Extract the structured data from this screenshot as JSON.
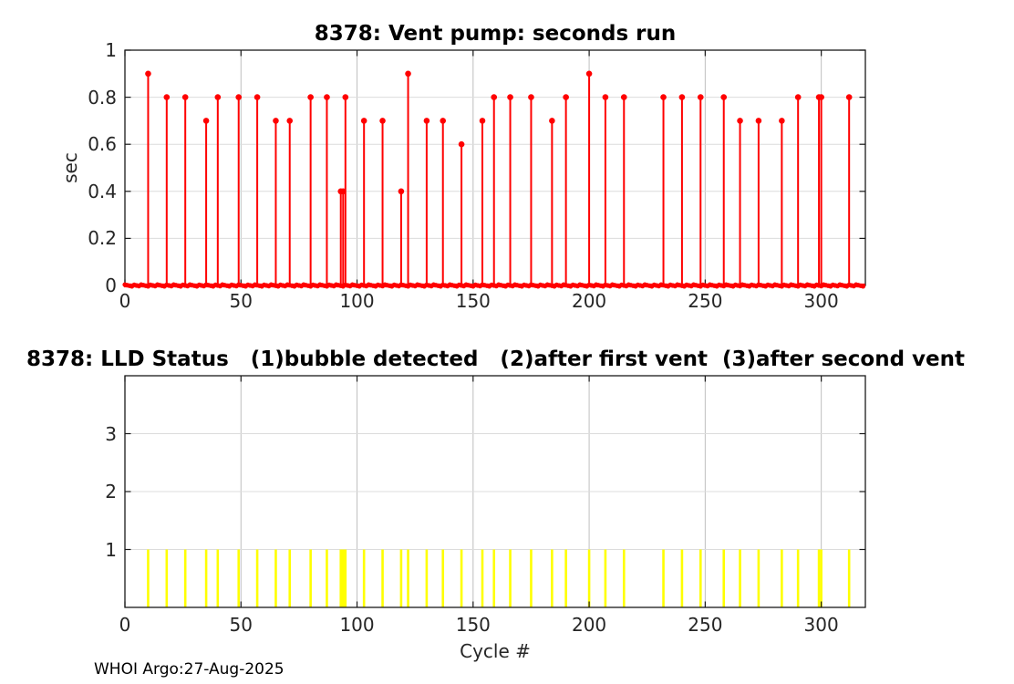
{
  "footer": "WHOI Argo:27-Aug-2025",
  "colors": {
    "stem": "#ff0000",
    "bar": "#ffff00",
    "axis": "#1a1a1a",
    "tick_label": "#262626",
    "grid_x": "#bfbfbf",
    "grid_y": "#dcdcdc",
    "background": "#ffffff"
  },
  "chart_data": [
    {
      "type": "stem",
      "title": "8378: Vent pump: seconds run",
      "xlabel": "",
      "ylabel": "sec",
      "xlim": [
        0,
        319
      ],
      "ylim": [
        0,
        1
      ],
      "xticks": [
        0,
        50,
        100,
        150,
        200,
        250,
        300
      ],
      "yticks": [
        0,
        0.2,
        0.4,
        0.6,
        0.8,
        1
      ],
      "grid": true,
      "legend": "none",
      "baseline": {
        "value": 0,
        "span": [
          0,
          318.5
        ]
      },
      "series": [
        {
          "name": "vent-pump-seconds",
          "color": "#ff0000",
          "x": [
            10,
            18,
            26,
            35,
            40,
            49,
            57,
            65,
            71,
            80,
            87,
            93,
            94,
            95,
            103,
            111,
            119,
            122,
            130,
            137,
            145,
            154,
            159,
            166,
            175,
            184,
            190,
            200,
            207,
            215,
            232,
            240,
            248,
            258,
            265,
            273,
            283,
            290,
            299,
            300,
            312
          ],
          "y": [
            0.9,
            0.8,
            0.8,
            0.7,
            0.8,
            0.8,
            0.8,
            0.7,
            0.7,
            0.8,
            0.8,
            0.4,
            0.4,
            0.8,
            0.7,
            0.7,
            0.4,
            0.9,
            0.7,
            0.7,
            0.6,
            0.7,
            0.8,
            0.8,
            0.8,
            0.7,
            0.8,
            0.9,
            0.8,
            0.8,
            0.8,
            0.8,
            0.8,
            0.8,
            0.7,
            0.7,
            0.7,
            0.8,
            0.8,
            0.8,
            0.8
          ]
        }
      ]
    },
    {
      "type": "bar",
      "title": "8378: LLD Status   (1)bubble detected   (2)after first vent  (3)after second vent",
      "xlabel": "Cycle #",
      "ylabel": "",
      "xlim": [
        0,
        319
      ],
      "ylim": [
        0,
        4
      ],
      "xticks": [
        0,
        50,
        100,
        150,
        200,
        250,
        300
      ],
      "yticks": [
        1,
        2,
        3
      ],
      "grid": true,
      "legend": "none",
      "series": [
        {
          "name": "lld-status",
          "color": "#ffff00",
          "x": [
            10,
            18,
            26,
            35,
            40,
            49,
            57,
            65,
            71,
            80,
            87,
            93,
            94,
            95,
            103,
            111,
            119,
            122,
            130,
            137,
            145,
            154,
            159,
            166,
            175,
            184,
            190,
            200,
            207,
            215,
            232,
            240,
            248,
            258,
            265,
            273,
            283,
            290,
            299,
            300,
            312
          ],
          "y": [
            1,
            1,
            1,
            1,
            1,
            1,
            1,
            1,
            1,
            1,
            1,
            1,
            1,
            1,
            1,
            1,
            1,
            1,
            1,
            1,
            1,
            1,
            1,
            1,
            1,
            1,
            1,
            1,
            1,
            1,
            1,
            1,
            1,
            1,
            1,
            1,
            1,
            1,
            1,
            1,
            1
          ]
        }
      ]
    }
  ]
}
